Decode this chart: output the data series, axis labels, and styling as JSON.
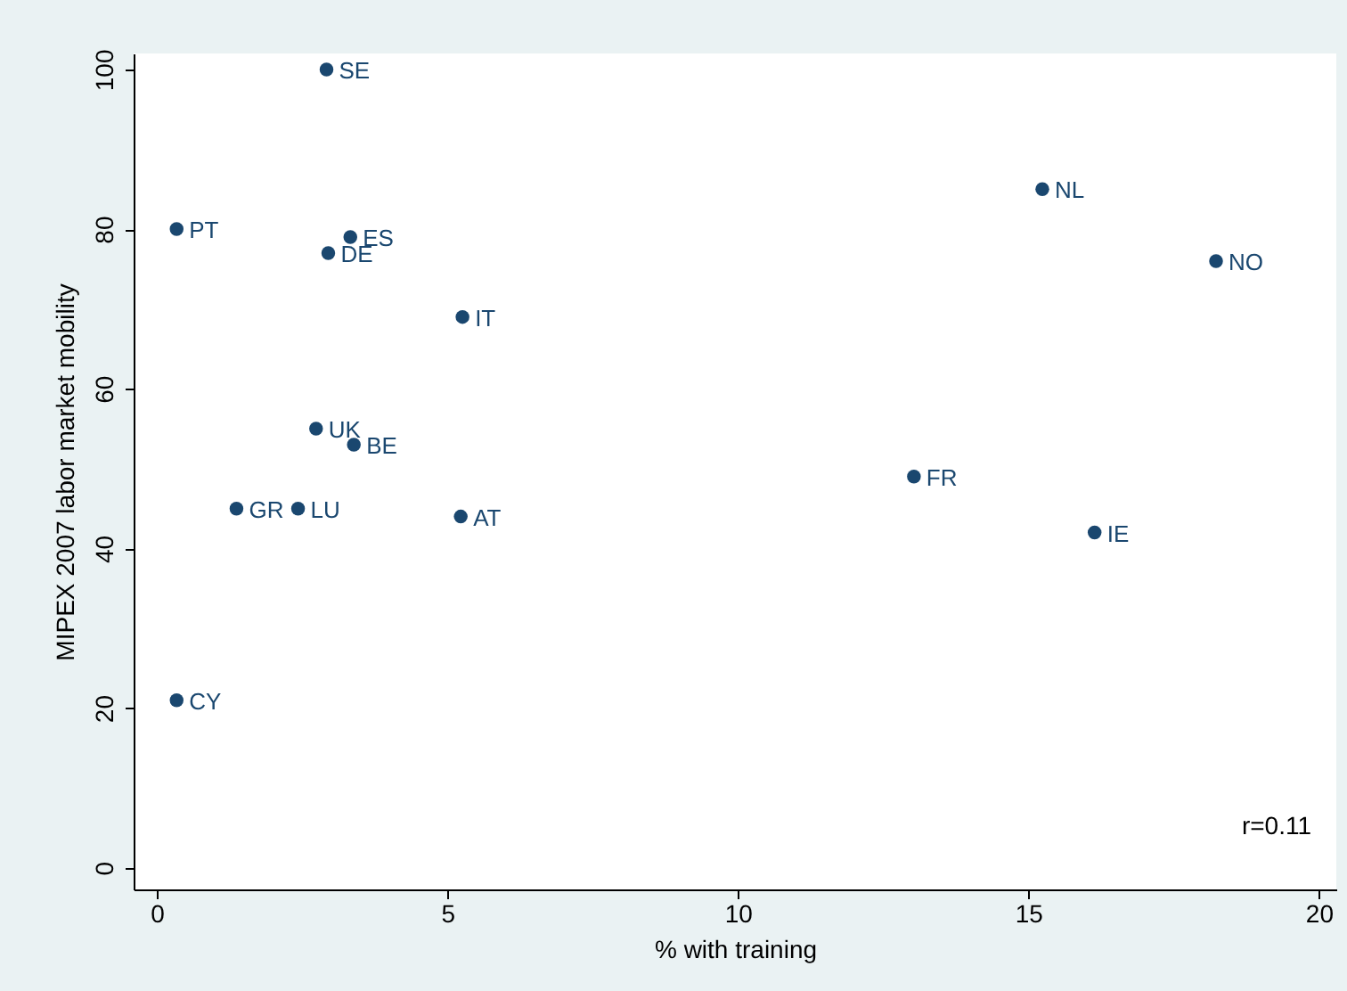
{
  "chart_data": {
    "type": "scatter",
    "xlabel": "% with training",
    "ylabel": "MIPEX 2007 labor market mobility",
    "x": [
      2.92,
      0.34,
      3.33,
      2.95,
      5.26,
      15.24,
      18.23,
      2.74,
      3.39,
      1.37,
      2.43,
      5.23,
      13.03,
      16.14,
      0.34
    ],
    "series": [
      {
        "color": "#1a476f",
        "values": [
          100,
          80,
          79,
          77,
          69,
          85,
          76,
          55,
          53,
          45,
          45,
          44,
          49,
          42,
          21
        ]
      }
    ],
    "xlim": [
      -0.4,
      20.3
    ],
    "ylim": [
      -2.7,
      102
    ],
    "xticks": [
      0,
      5,
      10,
      15,
      20
    ],
    "yticks": [
      0,
      20,
      40,
      60,
      80,
      100
    ],
    "marker": "circle",
    "grid": false,
    "annotations": [
      {
        "text": "SE",
        "x": 2.92,
        "y": 100
      },
      {
        "text": "PT",
        "x": 0.34,
        "y": 80
      },
      {
        "text": "ES",
        "x": 3.33,
        "y": 79
      },
      {
        "text": "DE",
        "x": 2.95,
        "y": 77
      },
      {
        "text": "IT",
        "x": 5.26,
        "y": 69
      },
      {
        "text": "NL",
        "x": 15.24,
        "y": 85
      },
      {
        "text": "NO",
        "x": 18.23,
        "y": 76
      },
      {
        "text": "UK",
        "x": 2.74,
        "y": 55
      },
      {
        "text": "BE",
        "x": 3.39,
        "y": 53
      },
      {
        "text": "GR",
        "x": 1.37,
        "y": 45
      },
      {
        "text": "LU",
        "x": 2.43,
        "y": 45
      },
      {
        "text": "AT",
        "x": 5.23,
        "y": 44
      },
      {
        "text": "FR",
        "x": 13.03,
        "y": 49
      },
      {
        "text": "IE",
        "x": 16.14,
        "y": 42
      },
      {
        "text": "CY",
        "x": 0.34,
        "y": 21
      },
      "r=0.11"
    ]
  }
}
